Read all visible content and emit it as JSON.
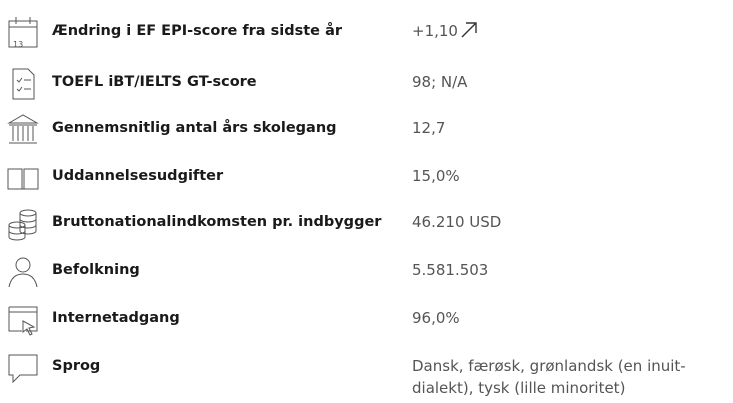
{
  "calendar_day": "13",
  "rows": [
    {
      "label": "Ændring i EF EPI-score fra sidste år",
      "value": "+1,10"
    },
    {
      "label": "TOEFL iBT/IELTS GT-score",
      "value": "98; N/A"
    },
    {
      "label": "Gennemsnitlig antal års skolegang",
      "value": "12,7"
    },
    {
      "label": "Uddannelsesudgifter",
      "value": "15,0%"
    },
    {
      "label": "Bruttonationalindkomsten pr. indbygger",
      "value": "46.210 USD"
    },
    {
      "label": "Befolkning",
      "value": "5.581.503"
    },
    {
      "label": "Internetadgang",
      "value": "96,0%"
    },
    {
      "label": "Sprog",
      "value": "Dansk, færøsk, grønlandsk (en inuit-dialekt), tysk (lille minoritet)"
    }
  ]
}
